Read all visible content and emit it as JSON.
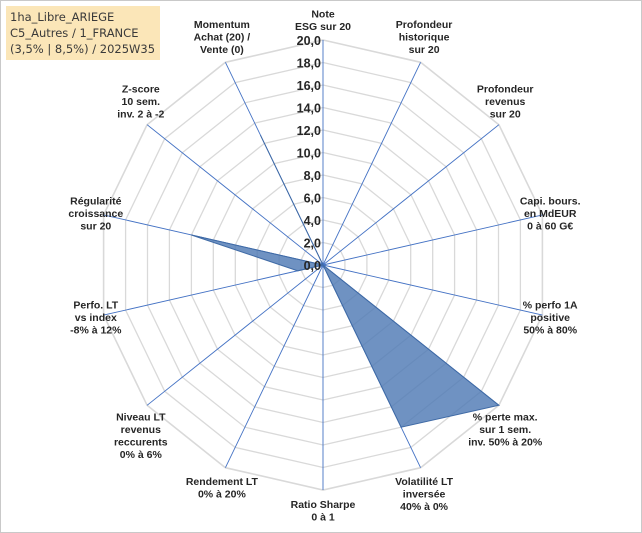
{
  "info_box": {
    "line1": "1ha_Libre_ARIEGE",
    "line2": "C5_Autres / 1_FRANCE",
    "line3": "(3,5% | 8,5%) / 2025W35"
  },
  "colors": {
    "fill": "#4f7ab5",
    "fill_stroke": "#3f6aa5",
    "spoke": "#4472c4",
    "grid": "#d9d9d9"
  },
  "chart_data": {
    "type": "radar",
    "title": "",
    "rlim": [
      0,
      20
    ],
    "tick_step": 2,
    "tick_labels": [
      "0,0",
      "2,0",
      "4,0",
      "6,0",
      "8,0",
      "10,0",
      "12,0",
      "14,0",
      "16,0",
      "18,0",
      "20,0"
    ],
    "grid": true,
    "axes": [
      {
        "lines": [
          "Note",
          "ESG sur 20"
        ],
        "value": 0
      },
      {
        "lines": [
          "Profondeur",
          "historique",
          "sur 20"
        ],
        "value": 0
      },
      {
        "lines": [
          "Profondeur",
          "revenus",
          "sur 20"
        ],
        "value": 0
      },
      {
        "lines": [
          "Capi. bours.",
          "en MdEUR",
          "0 à 60 G€"
        ],
        "value": 0
      },
      {
        "lines": [
          "% perfo 1A",
          "positive",
          "50% à 80%"
        ],
        "value": 0
      },
      {
        "lines": [
          "% perte max.",
          "sur 1 sem.",
          "inv. 50% à 20%"
        ],
        "value": 20
      },
      {
        "lines": [
          "Volatilité LT",
          "inversée",
          "40% à 0%"
        ],
        "value": 16
      },
      {
        "lines": [
          "Ratio Sharpe",
          "0 à 1"
        ],
        "value": 0
      },
      {
        "lines": [
          "Rendement LT",
          "0% à 20%"
        ],
        "value": 0
      },
      {
        "lines": [
          "Niveau LT",
          "revenus",
          "reccurents",
          "0% à 6%"
        ],
        "value": 0
      },
      {
        "lines": [
          "Perfo. LT",
          "vs index",
          "-8% à 12%"
        ],
        "value": 2.3
      },
      {
        "lines": [
          "Régularité",
          "croissance",
          "sur 20"
        ],
        "value": 12
      },
      {
        "lines": [
          "Z-score",
          "10 sem.",
          "inv. 2 à -2"
        ],
        "value": 0
      },
      {
        "lines": [
          "Momentum",
          "Achat (20) /",
          "Vente (0)"
        ],
        "value": 12.8
      }
    ]
  }
}
